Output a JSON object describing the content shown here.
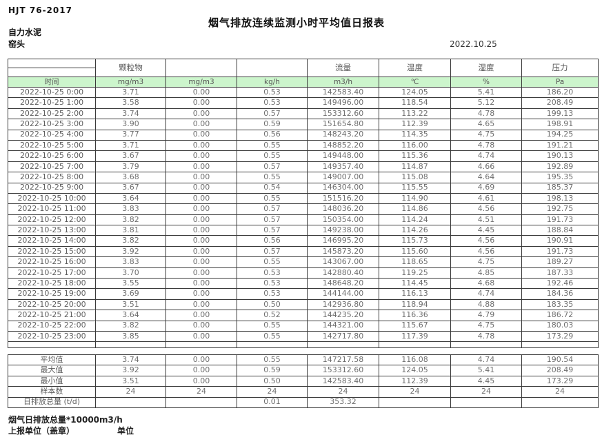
{
  "header": {
    "doc_code": "HJT  76-2017",
    "title": "烟气排放连续监测小时平均值日报表",
    "company": "自力水泥",
    "location": "窑头",
    "date": "2022.10.25"
  },
  "colors": {
    "header_green": "#ccf5cc"
  },
  "table": {
    "top_headers": [
      "",
      "颗粒物",
      "",
      "",
      "流量",
      "温度",
      "湿度",
      "压力"
    ],
    "units": [
      "时间",
      "mg/m3",
      "mg/m3",
      "kg/h",
      "m3/h",
      "℃",
      "%",
      "Pa"
    ],
    "rows": [
      [
        "2022-10-25 0:00",
        "3.71",
        "0.00",
        "0.53",
        "142583.40",
        "124.05",
        "5.41",
        "186.20"
      ],
      [
        "2022-10-25 1:00",
        "3.58",
        "0.00",
        "0.53",
        "149496.00",
        "118.54",
        "5.12",
        "208.49"
      ],
      [
        "2022-10-25 2:00",
        "3.74",
        "0.00",
        "0.57",
        "153312.60",
        "113.22",
        "4.78",
        "199.13"
      ],
      [
        "2022-10-25 3:00",
        "3.90",
        "0.00",
        "0.59",
        "151654.80",
        "112.39",
        "4.65",
        "198.91"
      ],
      [
        "2022-10-25 4:00",
        "3.77",
        "0.00",
        "0.56",
        "148243.20",
        "114.35",
        "4.75",
        "194.25"
      ],
      [
        "2022-10-25 5:00",
        "3.71",
        "0.00",
        "0.55",
        "148852.20",
        "116.00",
        "4.78",
        "191.21"
      ],
      [
        "2022-10-25 6:00",
        "3.67",
        "0.00",
        "0.55",
        "149448.00",
        "115.36",
        "4.74",
        "190.13"
      ],
      [
        "2022-10-25 7:00",
        "3.79",
        "0.00",
        "0.57",
        "149357.40",
        "114.87",
        "4.66",
        "192.89"
      ],
      [
        "2022-10-25 8:00",
        "3.68",
        "0.00",
        "0.55",
        "149007.00",
        "115.08",
        "4.64",
        "195.35"
      ],
      [
        "2022-10-25 9:00",
        "3.67",
        "0.00",
        "0.54",
        "146304.00",
        "115.55",
        "4.69",
        "185.37"
      ],
      [
        "2022-10-25 10:00",
        "3.64",
        "0.00",
        "0.55",
        "151516.20",
        "114.90",
        "4.61",
        "198.13"
      ],
      [
        "2022-10-25 11:00",
        "3.83",
        "0.00",
        "0.57",
        "148036.20",
        "114.86",
        "4.56",
        "192.75"
      ],
      [
        "2022-10-25 12:00",
        "3.82",
        "0.00",
        "0.57",
        "150354.00",
        "114.24",
        "4.51",
        "191.73"
      ],
      [
        "2022-10-25 13:00",
        "3.81",
        "0.00",
        "0.57",
        "149238.00",
        "114.26",
        "4.45",
        "188.84"
      ],
      [
        "2022-10-25 14:00",
        "3.82",
        "0.00",
        "0.56",
        "146995.20",
        "115.73",
        "4.56",
        "190.91"
      ],
      [
        "2022-10-25 15:00",
        "3.92",
        "0.00",
        "0.57",
        "145873.20",
        "115.60",
        "4.56",
        "191.73"
      ],
      [
        "2022-10-25 16:00",
        "3.83",
        "0.00",
        "0.55",
        "143067.00",
        "118.65",
        "4.75",
        "189.27"
      ],
      [
        "2022-10-25 17:00",
        "3.70",
        "0.00",
        "0.53",
        "142880.40",
        "119.25",
        "4.85",
        "187.33"
      ],
      [
        "2022-10-25 18:00",
        "3.55",
        "0.00",
        "0.53",
        "148648.20",
        "114.45",
        "4.68",
        "192.46"
      ],
      [
        "2022-10-25 19:00",
        "3.69",
        "0.00",
        "0.53",
        "144144.00",
        "116.13",
        "4.74",
        "184.36"
      ],
      [
        "2022-10-25 20:00",
        "3.51",
        "0.00",
        "0.50",
        "142936.80",
        "118.94",
        "4.88",
        "183.35"
      ],
      [
        "2022-10-25 21:00",
        "3.64",
        "0.00",
        "0.52",
        "144235.20",
        "116.36",
        "4.79",
        "186.72"
      ],
      [
        "2022-10-25 22:00",
        "3.82",
        "0.00",
        "0.55",
        "144321.00",
        "115.67",
        "4.75",
        "180.03"
      ],
      [
        "2022-10-25 23:00",
        "3.85",
        "0.00",
        "0.55",
        "142717.80",
        "117.39",
        "4.78",
        "173.29"
      ]
    ],
    "summary_rows": [
      [
        "平均值",
        "3.74",
        "0.00",
        "0.55",
        "147217.58",
        "116.08",
        "4.74",
        "190.54"
      ],
      [
        "最大值",
        "3.92",
        "0.00",
        "0.59",
        "153312.60",
        "124.05",
        "5.41",
        "208.49"
      ],
      [
        "最小值",
        "3.51",
        "0.00",
        "0.50",
        "142583.40",
        "112.39",
        "4.45",
        "173.29"
      ],
      [
        "样本数",
        "24",
        "24",
        "24",
        "24",
        "24",
        "24",
        "24"
      ],
      [
        "日排放总量 (t/d)",
        "",
        "",
        "0.01",
        "353.32",
        "",
        "",
        ""
      ]
    ]
  },
  "footer": {
    "note": "烟气日排放总量*10000m3/h",
    "report_unit": "上报单位（盖章）",
    "unit_label": "单位"
  }
}
